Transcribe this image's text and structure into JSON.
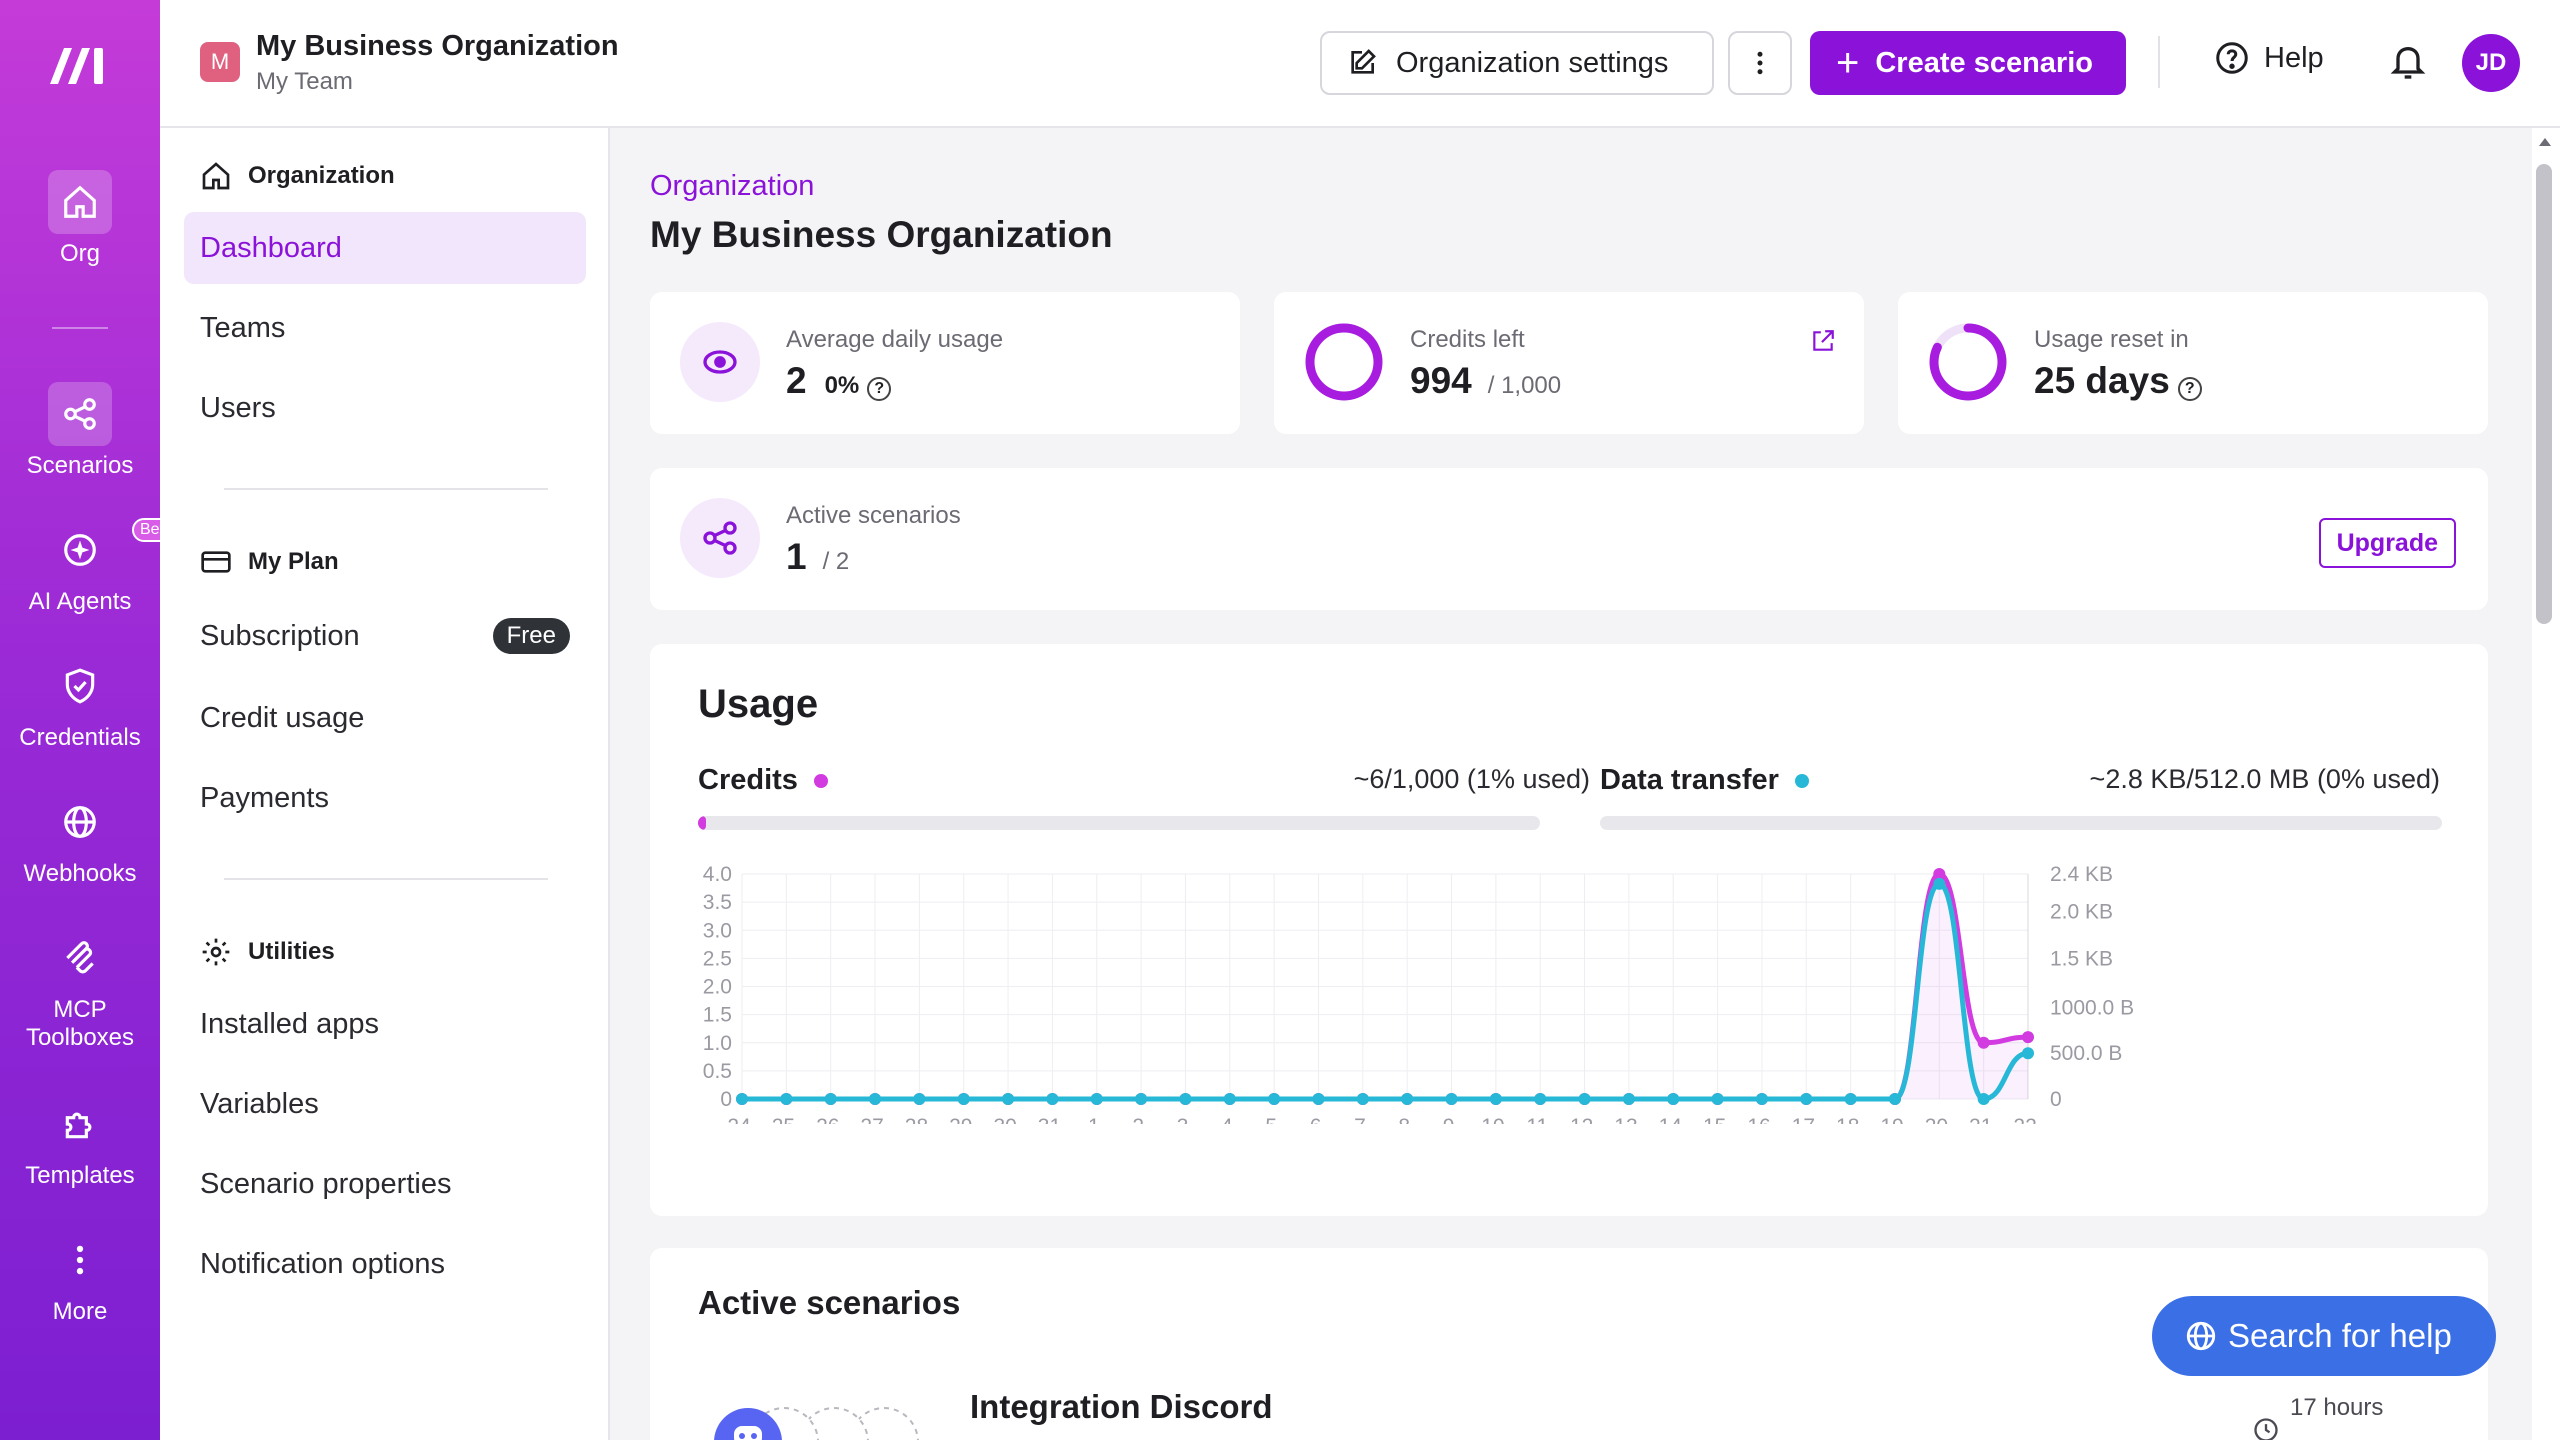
{
  "rail": {
    "items": [
      {
        "label": "Org",
        "icon": "home-icon"
      },
      {
        "label": "Scenarios",
        "icon": "share-icon"
      },
      {
        "label": "AI Agents",
        "icon": "sparkle-icon",
        "badge": "Beta"
      },
      {
        "label": "Credentials",
        "icon": "shield-icon"
      },
      {
        "label": "Webhooks",
        "icon": "globe-icon"
      },
      {
        "label": "MCP",
        "label2": "Toolboxes",
        "icon": "mcp-icon"
      },
      {
        "label": "Templates",
        "icon": "puzzle-icon"
      },
      {
        "label": "More",
        "icon": "more-vertical-icon"
      }
    ]
  },
  "header": {
    "org_initial": "M",
    "org_name": "My Business Organization",
    "team_name": "My Team",
    "settings_label": "Organization settings",
    "more_label": "⋮",
    "create_label": "Create scenario",
    "create_plus": "+",
    "help_label": "Help",
    "user_initials": "JD"
  },
  "sidebar": {
    "org_heading": "Organization",
    "org_items": [
      "Dashboard",
      "Teams",
      "Users"
    ],
    "plan_heading": "My Plan",
    "plan_items": [
      "Subscription",
      "Credit usage",
      "Payments"
    ],
    "plan_badge": "Free",
    "utilities_heading": "Utilities",
    "utilities_items": [
      "Installed apps",
      "Variables",
      "Scenario properties",
      "Notification options"
    ]
  },
  "main": {
    "breadcrumb": "Organization",
    "title": "My Business Organization",
    "stats": {
      "avg_label": "Average daily usage",
      "avg_value": "2",
      "avg_pct": "0%",
      "credits_label": "Credits left",
      "credits_value": "994",
      "credits_total": "/ 1,000",
      "credits_fraction": 0.994,
      "reset_label": "Usage reset in",
      "reset_value": "25 days",
      "reset_fraction": 0.82,
      "active_label": "Active scenarios",
      "active_value": "1",
      "active_total": "/ 2",
      "upgrade_label": "Upgrade",
      "help_glyph": "?"
    },
    "usage": {
      "title": "Usage",
      "credits_name": "Credits",
      "credits_usage": "~6/1,000 (1% used)",
      "credits_fraction": 0.01,
      "transfer_name": "Data transfer",
      "transfer_usage": "~2.8 KB/512.0 MB (0% used)",
      "transfer_fraction": 0.0,
      "credits_color": "#d13be0",
      "transfer_color": "#26b8d6"
    },
    "active_scenarios": {
      "title": "Active scenarios",
      "first_name": "Integration Discord",
      "first_time": "17 hours"
    },
    "search_help": "Search for help"
  },
  "chart_data": {
    "type": "line",
    "categories": [
      "24.",
      "25.",
      "26.",
      "27.",
      "28.",
      "29.",
      "30.",
      "31.",
      "1.",
      "2.",
      "3.",
      "4.",
      "5.",
      "6.",
      "7.",
      "8.",
      "9.",
      "10.",
      "11.",
      "12.",
      "13.",
      "14.",
      "15.",
      "16.",
      "17.",
      "18.",
      "19.",
      "20.",
      "21.",
      "22."
    ],
    "y_left_ticks": [
      "4.0",
      "3.5",
      "3.0",
      "2.5",
      "2.0",
      "1.5",
      "1.0",
      "0.5",
      "0"
    ],
    "y_right_ticks": [
      "2.4 KB",
      "2.0 KB",
      "1.5 KB",
      "1000.0 B",
      "500.0 B",
      "0"
    ],
    "ylim_left": [
      0,
      4
    ],
    "ylim_right": [
      0,
      2458
    ],
    "series": [
      {
        "name": "Credits",
        "axis": "left",
        "values": [
          0,
          0,
          0,
          0,
          0,
          0,
          0,
          0,
          0,
          0,
          0,
          0,
          0,
          0,
          0,
          0,
          0,
          0,
          0,
          0,
          0,
          0,
          0,
          0,
          0,
          0,
          0,
          4,
          1,
          1.1
        ]
      },
      {
        "name": "Data transfer",
        "axis": "right",
        "values": [
          0,
          0,
          0,
          0,
          0,
          0,
          0,
          0,
          0,
          0,
          0,
          0,
          0,
          0,
          0,
          0,
          0,
          0,
          0,
          0,
          0,
          0,
          0,
          0,
          0,
          0,
          0,
          2350,
          0,
          500
        ]
      }
    ],
    "grid": true
  }
}
